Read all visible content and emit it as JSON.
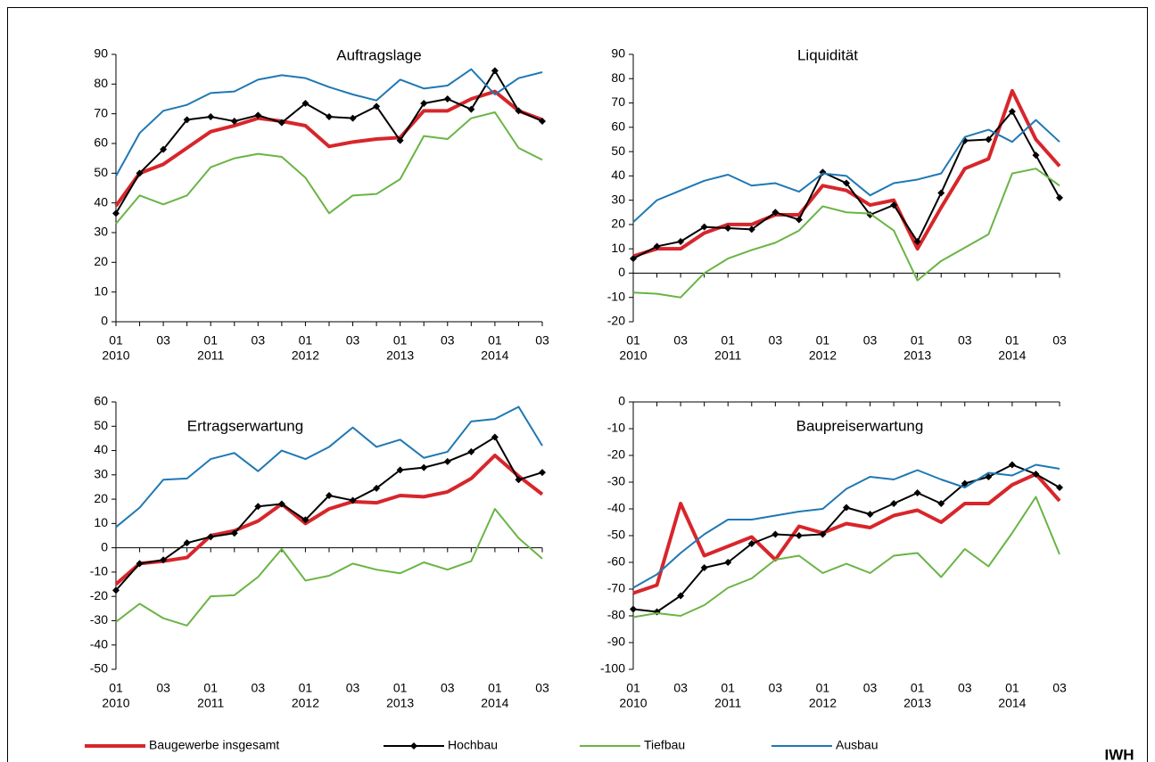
{
  "chart_data": [
    {
      "type": "line",
      "title": "Auftragslage",
      "categories": [
        "01",
        null,
        "03",
        null,
        "01",
        null,
        "03",
        null,
        "01",
        null,
        "03",
        null,
        "01",
        null,
        "03",
        null,
        "01",
        null,
        "03"
      ],
      "category_years": [
        "2010",
        null,
        null,
        null,
        "2011",
        null,
        null,
        null,
        "2012",
        null,
        null,
        null,
        "2013",
        null,
        null,
        null,
        "2014",
        null,
        null
      ],
      "ylim": [
        0,
        90
      ],
      "yticks": [
        0,
        10,
        20,
        30,
        40,
        50,
        60,
        70,
        80,
        90
      ],
      "series": [
        {
          "name": "Baugewerbe insgesamt",
          "color": "#d7262b",
          "line_width": 4,
          "values": [
            39,
            50,
            53,
            58.5,
            64,
            66,
            68.5,
            67.5,
            66,
            59,
            60.5,
            61.5,
            62,
            71,
            71,
            75,
            77.5,
            71,
            68
          ]
        },
        {
          "name": "Hochbau",
          "color": "#000000",
          "line_width": 2,
          "marker": "diamond",
          "values": [
            36.5,
            50,
            58,
            68,
            69,
            67.5,
            69.5,
            67,
            73.5,
            69,
            68.5,
            72.5,
            61,
            73.5,
            75,
            71.5,
            84.5,
            71,
            67.5
          ]
        },
        {
          "name": "Tiefbau",
          "color": "#6ab445",
          "line_width": 2,
          "values": [
            33,
            42.5,
            39.5,
            42.5,
            52,
            55,
            56.5,
            55.5,
            48.5,
            36.5,
            42.5,
            43,
            48,
            62.5,
            61.5,
            68.5,
            70.5,
            58.5,
            54.5
          ]
        },
        {
          "name": "Ausbau",
          "color": "#1f78b4",
          "line_width": 2,
          "values": [
            49,
            63.5,
            71,
            73,
            77,
            77.5,
            81.5,
            83,
            82,
            79,
            76.5,
            74.5,
            81.5,
            78.5,
            79.5,
            85,
            76.5,
            82,
            84
          ]
        }
      ]
    },
    {
      "type": "line",
      "title": "Liquidität",
      "categories": [
        "01",
        null,
        "03",
        null,
        "01",
        null,
        "03",
        null,
        "01",
        null,
        "03",
        null,
        "01",
        null,
        "03",
        null,
        "01",
        null,
        "03"
      ],
      "category_years": [
        "2010",
        null,
        null,
        null,
        "2011",
        null,
        null,
        null,
        "2012",
        null,
        null,
        null,
        "2013",
        null,
        null,
        null,
        "2014",
        null,
        null
      ],
      "ylim": [
        -20,
        90
      ],
      "yticks": [
        -20,
        -10,
        0,
        10,
        20,
        30,
        40,
        50,
        60,
        70,
        80,
        90
      ],
      "series": [
        {
          "color": "#d7262b",
          "line_width": 4,
          "values": [
            7,
            10,
            10,
            16.5,
            20,
            20,
            24,
            24,
            36,
            34,
            28,
            30,
            10,
            27,
            43,
            47,
            75,
            55,
            44
          ]
        },
        {
          "color": "#000000",
          "line_width": 2,
          "marker": "diamond",
          "values": [
            6,
            11,
            13,
            19,
            18.5,
            18,
            25,
            22,
            41.5,
            37,
            24,
            28,
            13,
            33,
            54.5,
            55,
            66.5,
            48.5,
            31
          ]
        },
        {
          "color": "#6ab445",
          "line_width": 2,
          "values": [
            -8,
            -8.5,
            -10,
            0,
            6,
            9.5,
            12.5,
            17.5,
            27.5,
            25,
            24.5,
            17.5,
            -3,
            5,
            10.5,
            16,
            41,
            43,
            36
          ]
        },
        {
          "color": "#1f78b4",
          "line_width": 2,
          "values": [
            21,
            30,
            34,
            38,
            40.5,
            36,
            37,
            33.5,
            41,
            40,
            32,
            37,
            38.5,
            41,
            56,
            59,
            54,
            63,
            54
          ]
        }
      ]
    },
    {
      "type": "line",
      "title": "Ertragserwartung",
      "categories": [
        "01",
        null,
        "03",
        null,
        "01",
        null,
        "03",
        null,
        "01",
        null,
        "03",
        null,
        "01",
        null,
        "03",
        null,
        "01",
        null,
        "03"
      ],
      "category_years": [
        "2010",
        null,
        null,
        null,
        "2011",
        null,
        null,
        null,
        "2012",
        null,
        null,
        null,
        "2013",
        null,
        null,
        null,
        "2014",
        null,
        null
      ],
      "ylim": [
        -50,
        60
      ],
      "yticks": [
        -50,
        -40,
        -30,
        -20,
        -10,
        0,
        10,
        20,
        30,
        40,
        50,
        60
      ],
      "series": [
        {
          "color": "#d7262b",
          "line_width": 4,
          "values": [
            -15,
            -6.5,
            -5.5,
            -4,
            5,
            7,
            11,
            18,
            10,
            16,
            19,
            18.5,
            21.5,
            21,
            23,
            28.5,
            38,
            29.5,
            22
          ]
        },
        {
          "color": "#000000",
          "line_width": 2,
          "marker": "diamond",
          "values": [
            -17.5,
            -6.5,
            -5,
            2,
            4.5,
            6,
            17,
            18,
            11.5,
            21.5,
            19.5,
            24.5,
            32,
            33,
            35.5,
            39.5,
            45.5,
            28,
            31
          ]
        },
        {
          "color": "#6ab445",
          "line_width": 2,
          "values": [
            -30.5,
            -23,
            -29,
            -32,
            -20,
            -19.5,
            -12,
            -0.5,
            -13.5,
            -11.5,
            -6.5,
            -9,
            -10.5,
            -6,
            -9,
            -5.5,
            16,
            4,
            -4.5
          ]
        },
        {
          "color": "#1f78b4",
          "line_width": 2,
          "values": [
            8.5,
            16.5,
            28,
            28.5,
            36.5,
            39,
            31.5,
            40,
            36.5,
            41.5,
            49.5,
            41.5,
            44.5,
            37,
            39.5,
            52,
            53,
            58,
            42
          ]
        }
      ]
    },
    {
      "type": "line",
      "title": "Baupreiserwartung",
      "categories": [
        "01",
        null,
        "03",
        null,
        "01",
        null,
        "03",
        null,
        "01",
        null,
        "03",
        null,
        "01",
        null,
        "03",
        null,
        "01",
        null,
        "03"
      ],
      "category_years": [
        "2010",
        null,
        null,
        null,
        "2011",
        null,
        null,
        null,
        "2012",
        null,
        null,
        null,
        "2013",
        null,
        null,
        null,
        "2014",
        null,
        null
      ],
      "ylim": [
        -100,
        0
      ],
      "yticks": [
        -100,
        -90,
        -80,
        -70,
        -60,
        -50,
        -40,
        -30,
        -20,
        -10,
        0
      ],
      "series": [
        {
          "color": "#d7262b",
          "line_width": 4,
          "values": [
            -71.5,
            -68.5,
            -38,
            -57.5,
            -54,
            -50.5,
            -59,
            -46.5,
            -49,
            -45.5,
            -47,
            -42.5,
            -40.5,
            -45,
            -38,
            -38,
            -31,
            -27,
            -37
          ]
        },
        {
          "color": "#000000",
          "line_width": 2,
          "marker": "diamond",
          "values": [
            -77.5,
            -78.5,
            -72.5,
            -62,
            -60,
            -53,
            -49.5,
            -50,
            -49.5,
            -39.5,
            -42,
            -38,
            -34,
            -38,
            -30.5,
            -28,
            -23.5,
            -27,
            -32
          ]
        },
        {
          "color": "#6ab445",
          "line_width": 2,
          "values": [
            -80.5,
            -79,
            -80,
            -76,
            -69.5,
            -66,
            -59,
            -57.5,
            -64,
            -60.5,
            -64,
            -57.5,
            -56.5,
            -65.5,
            -55,
            -61.5,
            -49,
            -35.5,
            -57
          ]
        },
        {
          "color": "#1f78b4",
          "line_width": 2,
          "values": [
            -69.5,
            -64.5,
            -56.5,
            -49.5,
            -44,
            -44,
            -42.5,
            -41,
            -40,
            -32.5,
            -28,
            -29,
            -25.5,
            -29,
            -32,
            -26.5,
            -27.5,
            -23.5,
            -25
          ]
        }
      ]
    }
  ],
  "source": "IWH"
}
